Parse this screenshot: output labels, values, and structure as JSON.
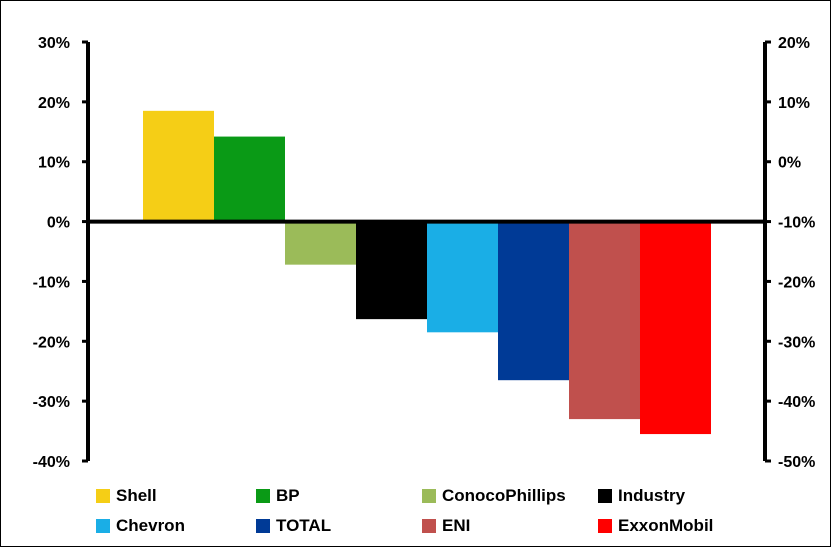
{
  "chart_data": {
    "type": "bar",
    "title": "",
    "xlabel": "",
    "ylabel": "",
    "categories": [
      "Shell",
      "BP",
      "ConocoPhillips",
      "Industry",
      "Chevron",
      "TOTAL",
      "ENI",
      "ExxonMobil"
    ],
    "values": [
      18.5,
      14.2,
      -7.2,
      -16.3,
      -18.5,
      -26.5,
      -33.0,
      -35.5
    ],
    "colors": [
      "#F5CE16",
      "#0A9A16",
      "#9BBB59",
      "#000000",
      "#1AAEE6",
      "#003A96",
      "#C0504D",
      "#FF0000"
    ],
    "ylim": [
      -40,
      30
    ],
    "yticks_left": [
      "30%",
      "20%",
      "10%",
      "0%",
      "-10%",
      "-20%",
      "-30%",
      "-40%"
    ],
    "y2lim": [
      -50,
      20
    ],
    "yticks_right": [
      "20%",
      "10%",
      "0%",
      "-10%",
      "-20%",
      "-30%",
      "-40%",
      "-50%"
    ],
    "grid": false,
    "legend_position": "bottom"
  }
}
